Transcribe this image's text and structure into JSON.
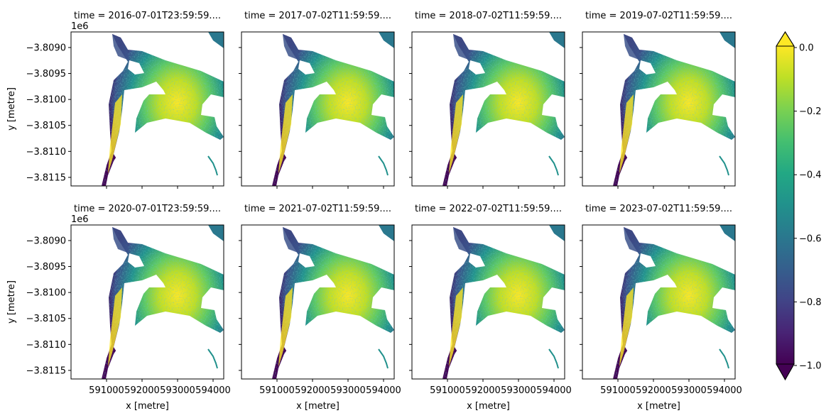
{
  "chart_data": {
    "type": "heatmap",
    "layout": "facet grid, 2 rows x 4 columns",
    "colormap": "viridis",
    "xlabel": "x [metre]",
    "ylabel": "y [metre]",
    "xlim": [
      590000,
      594300
    ],
    "ylim": [
      -3811665,
      -3808700
    ],
    "xticks": [
      591000,
      592000,
      593000,
      594000
    ],
    "xtick_labels": [
      "591000",
      "592000",
      "593000",
      "594000"
    ],
    "yticks": [
      -3809000,
      -3809500,
      -3810000,
      -3810500,
      -3811000,
      -3811500
    ],
    "ytick_labels": [
      "−3.8090",
      "−3.8095",
      "−3.8100",
      "−3.8105",
      "−3.8110",
      "−3.8115"
    ],
    "y_offset_label": "1e6",
    "panels": [
      {
        "title": "time = 2016-07-01T23:59:59...."
      },
      {
        "title": "time = 2017-07-02T11:59:59...."
      },
      {
        "title": "time = 2018-07-02T11:59:59...."
      },
      {
        "title": "time = 2019-07-02T11:59:59...."
      },
      {
        "title": "time = 2020-07-01T23:59:59...."
      },
      {
        "title": "time = 2021-07-02T11:59:59...."
      },
      {
        "title": "time = 2022-07-02T11:59:59...."
      },
      {
        "title": "time = 2023-07-02T11:59:59...."
      }
    ],
    "colorbar": {
      "range": [
        -1.0,
        0.0
      ],
      "extend": "both",
      "ticks": [
        0.0,
        -0.2,
        -0.4,
        -0.6,
        -0.8,
        -1.0
      ],
      "tick_labels": [
        "0.0",
        "−0.2",
        "−0.4",
        "−0.6",
        "−0.8",
        "−1.0"
      ]
    },
    "grid": false
  }
}
